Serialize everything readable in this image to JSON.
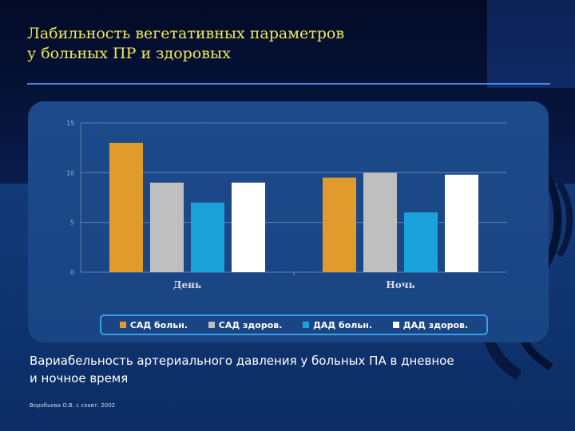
{
  "slide": {
    "title_lines": [
      "Лабильность вегетативных параметров",
      "у больных ПР и здоровых"
    ],
    "caption_lines": [
      "Вариабельность артериального давления у больных ПА в дневное",
      "и ночное время"
    ],
    "footer": "Воробьева О.В. с соавт. 2002",
    "colors": {
      "title": "#f2e85a",
      "rule": "#3f8de8",
      "panel": "#1d4a8a",
      "legend_border": "#3aa0e8"
    }
  },
  "chart_data": {
    "type": "bar",
    "title": "",
    "xlabel": "",
    "ylabel": "",
    "categories": [
      "День",
      "Ночь"
    ],
    "yticks": [
      "0",
      "5",
      "10",
      "15"
    ],
    "ylim": [
      0,
      15
    ],
    "grid": true,
    "legend_position": "bottom",
    "series": [
      {
        "name": "САД больн.",
        "values": [
          13,
          9.5
        ],
        "color": "#e19a2c"
      },
      {
        "name": "САД здоров.",
        "values": [
          9,
          10
        ],
        "color": "#bfbfbf"
      },
      {
        "name": "ДАД больн.",
        "values": [
          7,
          6
        ],
        "color": "#1aa3db"
      },
      {
        "name": "ДАД здоров.",
        "values": [
          9,
          9.8
        ],
        "color": "#ffffff"
      }
    ]
  }
}
